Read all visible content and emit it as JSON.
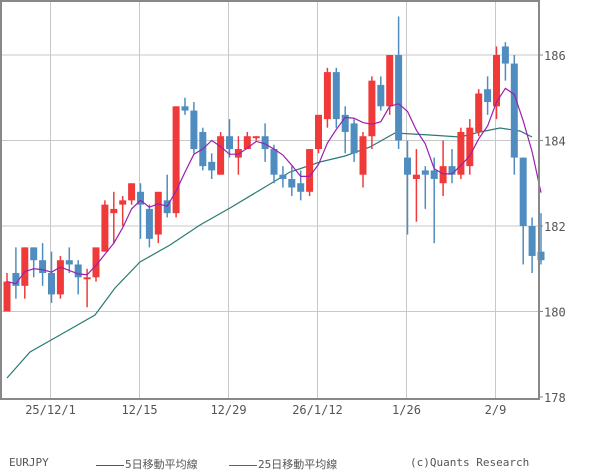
{
  "chart_data": {
    "type": "candlestick",
    "symbol": "EURJPY",
    "title": "",
    "xlabel": "",
    "ylabel": "",
    "ylim": [
      178,
      187.2
    ],
    "y_ticks": [
      178,
      180,
      182,
      184,
      186
    ],
    "x_tick_labels": [
      {
        "label": "25/12/1",
        "index": 5
      },
      {
        "label": "12/15",
        "index": 15
      },
      {
        "label": "12/29",
        "index": 25
      },
      {
        "label": "26/1/12",
        "index": 35
      },
      {
        "label": "1/26",
        "index": 45
      },
      {
        "label": "2/9",
        "index": 55
      }
    ],
    "grid": true,
    "legend_position": "bottom",
    "up_color": "#f03a3a",
    "down_color": "#4f8dc0",
    "ohlc": [
      [
        180.0,
        180.9,
        180.0,
        180.7
      ],
      [
        180.9,
        181.5,
        180.3,
        180.6
      ],
      [
        180.6,
        181.5,
        180.3,
        181.5
      ],
      [
        181.5,
        181.5,
        180.8,
        181.2
      ],
      [
        181.2,
        181.6,
        180.6,
        180.9
      ],
      [
        180.9,
        181.4,
        180.2,
        180.4
      ],
      [
        180.4,
        181.3,
        180.3,
        181.2
      ],
      [
        181.2,
        181.5,
        180.9,
        181.1
      ],
      [
        181.1,
        181.2,
        180.4,
        180.8
      ],
      [
        180.8,
        181.0,
        180.1,
        180.8
      ],
      [
        180.8,
        181.4,
        180.7,
        181.5
      ],
      [
        181.4,
        182.6,
        181.4,
        182.5
      ],
      [
        182.3,
        182.8,
        181.6,
        182.4
      ],
      [
        182.5,
        182.7,
        182.0,
        182.6
      ],
      [
        182.6,
        183.0,
        182.5,
        183.0
      ],
      [
        182.8,
        183.0,
        181.7,
        182.5
      ],
      [
        182.4,
        182.5,
        181.5,
        181.7
      ],
      [
        181.8,
        182.8,
        181.6,
        182.8
      ],
      [
        182.6,
        183.2,
        182.2,
        182.3
      ],
      [
        182.3,
        184.8,
        182.2,
        184.8
      ],
      [
        184.8,
        185.0,
        184.6,
        184.7
      ],
      [
        184.7,
        184.9,
        183.7,
        183.8
      ],
      [
        184.2,
        184.3,
        183.3,
        183.4
      ],
      [
        183.5,
        183.7,
        183.1,
        183.3
      ],
      [
        183.2,
        184.2,
        183.2,
        184.1
      ],
      [
        184.1,
        184.5,
        183.6,
        183.8
      ],
      [
        183.6,
        184.1,
        183.2,
        183.8
      ],
      [
        183.8,
        184.2,
        183.8,
        184.1
      ],
      [
        184.1,
        184.1,
        184.0,
        184.1
      ],
      [
        184.1,
        184.4,
        183.5,
        183.8
      ],
      [
        183.8,
        183.9,
        183.0,
        183.2
      ],
      [
        183.2,
        183.4,
        182.9,
        183.1
      ],
      [
        183.1,
        183.4,
        182.7,
        182.9
      ],
      [
        183.0,
        183.3,
        182.6,
        182.8
      ],
      [
        182.8,
        183.6,
        182.7,
        183.8
      ],
      [
        183.8,
        184.6,
        183.7,
        184.6
      ],
      [
        184.5,
        185.7,
        184.3,
        185.6
      ],
      [
        185.6,
        185.7,
        184.3,
        184.5
      ],
      [
        184.6,
        184.8,
        183.7,
        184.2
      ],
      [
        184.4,
        184.5,
        183.5,
        183.7
      ],
      [
        183.2,
        184.2,
        182.9,
        184.1
      ],
      [
        184.1,
        185.5,
        183.8,
        185.4
      ],
      [
        185.3,
        185.5,
        184.7,
        184.8
      ],
      [
        184.8,
        186.0,
        184.6,
        186.0
      ],
      [
        186.0,
        186.9,
        183.8,
        184.0
      ],
      [
        183.6,
        184.0,
        181.8,
        183.2
      ],
      [
        183.1,
        183.8,
        182.1,
        183.2
      ],
      [
        183.3,
        183.4,
        182.4,
        183.2
      ],
      [
        183.3,
        183.6,
        181.6,
        183.1
      ],
      [
        183.0,
        184.0,
        182.7,
        183.4
      ],
      [
        183.4,
        183.8,
        183.0,
        183.2
      ],
      [
        183.2,
        184.3,
        183.1,
        184.2
      ],
      [
        183.4,
        184.5,
        183.2,
        184.3
      ],
      [
        184.2,
        185.2,
        184.1,
        185.1
      ],
      [
        185.2,
        185.5,
        184.6,
        184.9
      ],
      [
        184.8,
        186.2,
        184.5,
        186.0
      ],
      [
        186.2,
        186.3,
        185.4,
        185.8
      ],
      [
        185.8,
        186.0,
        183.2,
        183.6
      ],
      [
        183.6,
        183.6,
        181.1,
        182.0
      ],
      [
        182.0,
        182.2,
        180.9,
        181.3
      ],
      [
        181.4,
        182.3,
        181.1,
        181.2
      ]
    ],
    "series": [
      {
        "name": "5日移動平均線",
        "color": "#9b1fb0"
      },
      {
        "name": "25日移動平均線",
        "color": "#2a7a74"
      }
    ]
  },
  "legend": {
    "symbol": "EURJPY",
    "ma5_label": "5日移動平均線",
    "ma25_label": "25日移動平均線",
    "copyright": "(c)Quants Research"
  }
}
